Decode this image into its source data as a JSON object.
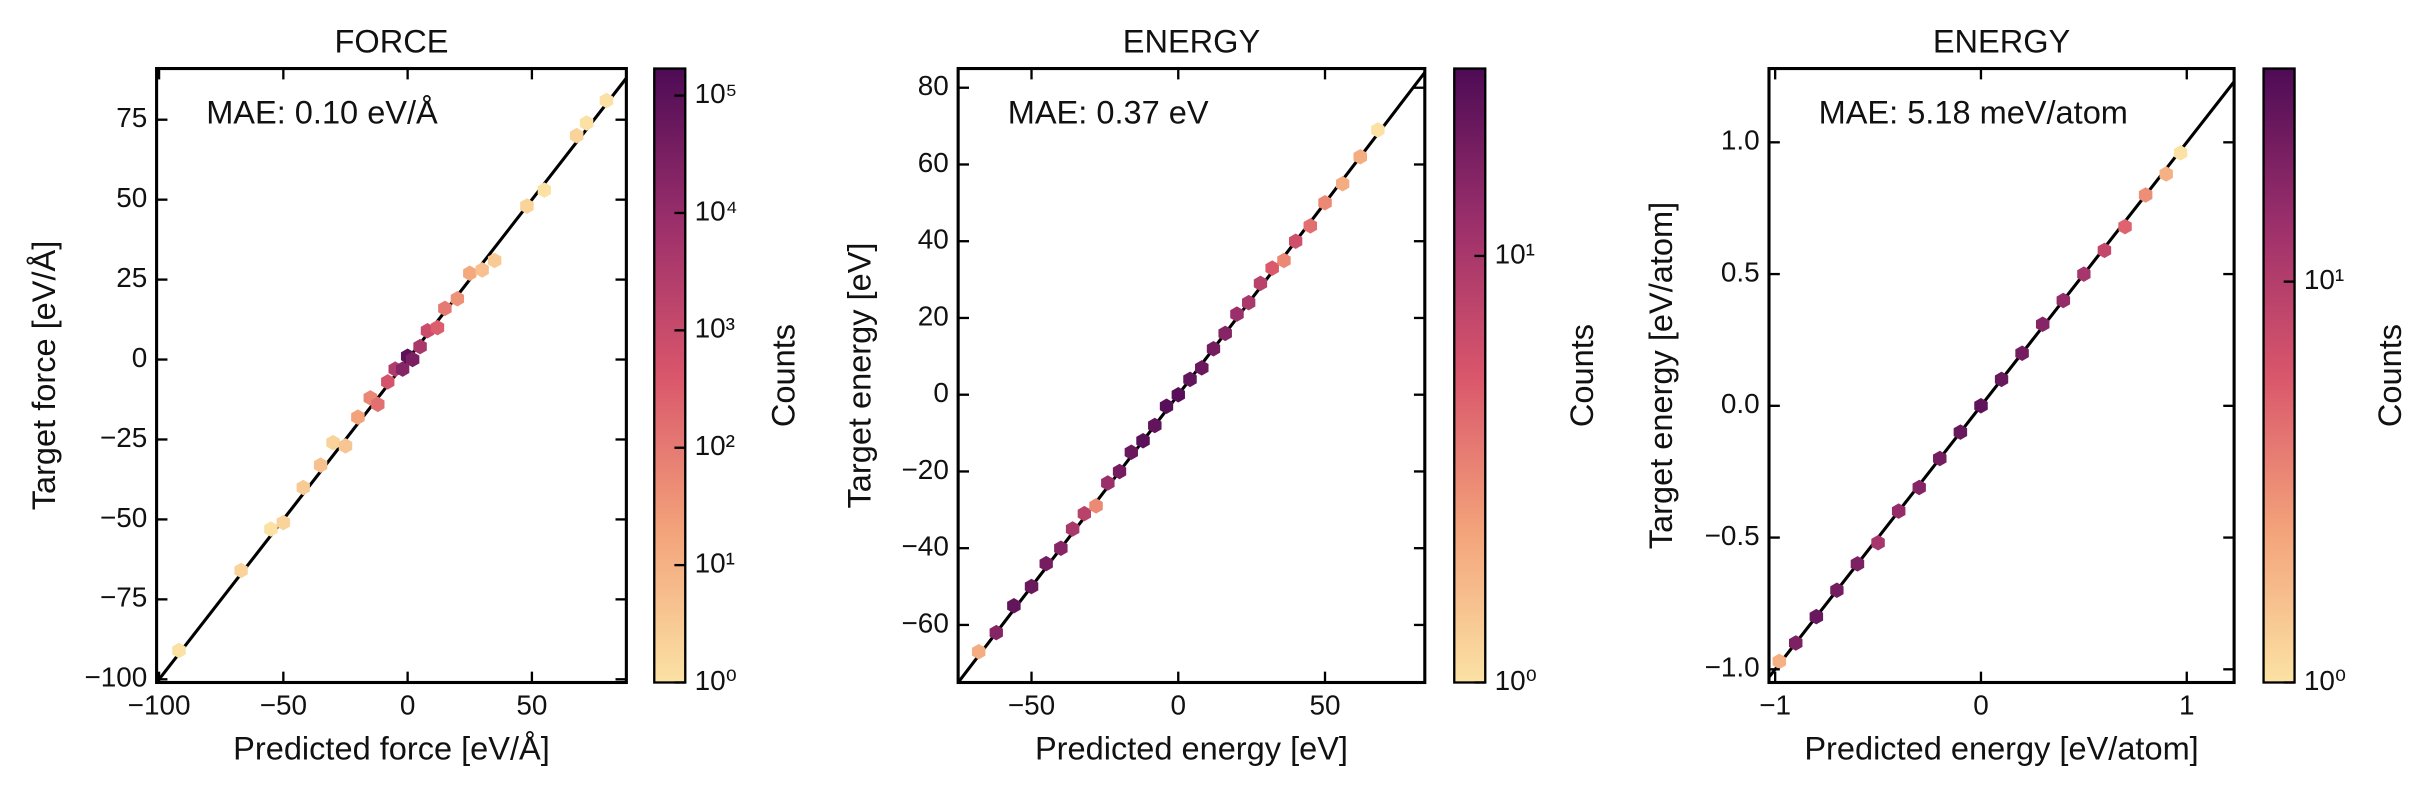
{
  "chart_data": [
    {
      "type": "hexbin",
      "title": "FORCE",
      "xlabel": "Predicted force [eV/Å]",
      "ylabel": "Target force [eV/Å]",
      "annotation": "MAE: 0.10 eV/Å",
      "x": [
        -92,
        -67,
        -55,
        -50,
        -42,
        -35,
        -30,
        -25,
        -20,
        -15,
        -12,
        -8,
        -5,
        -2,
        0,
        2,
        5,
        8,
        12,
        15,
        20,
        25,
        30,
        35,
        48,
        55,
        68,
        72,
        80
      ],
      "y": [
        -91,
        -66,
        -53,
        -51,
        -40,
        -33,
        -26,
        -27,
        -18,
        -12,
        -14,
        -7,
        -3,
        -3,
        1,
        0,
        4,
        9,
        10,
        16,
        19,
        27,
        28,
        31,
        48,
        53,
        70,
        74,
        81
      ],
      "counts": [
        1,
        2,
        1,
        2,
        3,
        5,
        2,
        4,
        20,
        60,
        150,
        500,
        3000,
        20000,
        100000,
        30000,
        4000,
        800,
        300,
        100,
        40,
        15,
        5,
        3,
        2,
        1,
        2,
        1,
        1
      ],
      "xlim": [
        -101,
        88
      ],
      "ylim": [
        -101,
        91
      ],
      "xticks": [
        {
          "value": -100,
          "label": "−100"
        },
        {
          "value": -50,
          "label": "−50"
        },
        0,
        50
      ],
      "yticks": [
        {
          "value": -100,
          "label": "−100"
        },
        {
          "value": -75,
          "label": "−75"
        },
        {
          "value": -50,
          "label": "−50"
        },
        {
          "value": -25,
          "label": "−25"
        },
        0,
        25,
        50,
        75
      ],
      "colorbar": {
        "label": "Counts",
        "log": true,
        "lim": [
          1,
          170000
        ],
        "ticks": [
          {
            "value": 1,
            "label": "10⁰"
          },
          {
            "value": 10,
            "label": "10¹"
          },
          {
            "value": 100,
            "label": "10²"
          },
          {
            "value": 1000,
            "label": "10³"
          },
          {
            "value": 10000,
            "label": "10⁴"
          },
          {
            "value": 100000,
            "label": "10⁵"
          }
        ]
      },
      "colormap": [
        "#fbe2a4",
        "#f3a27a",
        "#d9566b",
        "#9b2f6b",
        "#4d0b55"
      ]
    },
    {
      "type": "hexbin",
      "title": "ENERGY",
      "xlabel": "Predicted energy [eV]",
      "ylabel": "Target energy [eV]",
      "annotation": "MAE: 0.37 eV",
      "x": [
        -68,
        -62,
        -56,
        -50,
        -45,
        -40,
        -36,
        -32,
        -28,
        -24,
        -20,
        -16,
        -12,
        -8,
        -4,
        0,
        4,
        8,
        12,
        16,
        20,
        24,
        28,
        32,
        36,
        40,
        45,
        50,
        56,
        62,
        68
      ],
      "y": [
        -67,
        -62,
        -55,
        -50,
        -44,
        -40,
        -35,
        -31,
        -29,
        -23,
        -20,
        -15,
        -12,
        -8,
        -3,
        0,
        4,
        7,
        12,
        16,
        21,
        24,
        29,
        33,
        35,
        40,
        44,
        50,
        55,
        62,
        69
      ],
      "counts": [
        2,
        15,
        22,
        20,
        18,
        15,
        10,
        8,
        3,
        12,
        18,
        20,
        24,
        22,
        25,
        25,
        22,
        20,
        18,
        15,
        12,
        10,
        8,
        5,
        3,
        6,
        4,
        3,
        2,
        2,
        1
      ],
      "xlim": [
        -75,
        84
      ],
      "ylim": [
        -75,
        85
      ],
      "xticks": [
        {
          "value": -50,
          "label": "−50"
        },
        0,
        50
      ],
      "yticks": [
        {
          "value": -60,
          "label": "−60"
        },
        {
          "value": -40,
          "label": "−40"
        },
        {
          "value": -20,
          "label": "−20"
        },
        0,
        20,
        40,
        60,
        80
      ],
      "colorbar": {
        "label": "Counts",
        "log": true,
        "lim": [
          1,
          27.5
        ],
        "ticks": [
          {
            "value": 1,
            "label": "10⁰"
          },
          {
            "value": 10,
            "label": "10¹"
          }
        ]
      },
      "colormap": [
        "#fbe2a4",
        "#f3a27a",
        "#d9566b",
        "#9b2f6b",
        "#4d0b55"
      ]
    },
    {
      "type": "hexbin",
      "title": "ENERGY",
      "xlabel": "Predicted energy [eV/atom]",
      "ylabel": "Target energy [eV/atom]",
      "annotation": "MAE: 5.18 meV/atom",
      "x": [
        -0.98,
        -0.9,
        -0.8,
        -0.7,
        -0.6,
        -0.5,
        -0.4,
        -0.3,
        -0.2,
        -0.1,
        0,
        0.1,
        0.2,
        0.3,
        0.4,
        0.5,
        0.6,
        0.7,
        0.8,
        0.9,
        0.97
      ],
      "y": [
        -0.97,
        -0.9,
        -0.8,
        -0.7,
        -0.6,
        -0.52,
        -0.4,
        -0.31,
        -0.2,
        -0.1,
        0,
        0.1,
        0.2,
        0.31,
        0.4,
        0.5,
        0.59,
        0.68,
        0.8,
        0.88,
        0.96
      ],
      "counts": [
        2,
        20,
        25,
        22,
        20,
        12,
        15,
        18,
        22,
        25,
        28,
        25,
        22,
        18,
        15,
        12,
        8,
        5,
        3,
        2,
        1
      ],
      "xlim": [
        -1.03,
        1.23
      ],
      "ylim": [
        -1.05,
        1.28
      ],
      "xticks": [
        {
          "value": -1,
          "label": "−1"
        },
        0,
        1
      ],
      "yticks": [
        {
          "value": -1,
          "label": "−1.0"
        },
        {
          "value": -0.5,
          "label": "−0.5"
        },
        {
          "value": 0,
          "label": "0.0"
        },
        0.5,
        {
          "value": 1,
          "label": "1.0"
        }
      ],
      "colorbar": {
        "label": "Counts",
        "log": true,
        "lim": [
          1,
          34
        ],
        "ticks": [
          {
            "value": 1,
            "label": "10⁰"
          },
          {
            "value": 10,
            "label": "10¹"
          }
        ]
      },
      "colormap": [
        "#fbe2a4",
        "#f3a27a",
        "#d9566b",
        "#9b2f6b",
        "#4d0b55"
      ]
    }
  ]
}
